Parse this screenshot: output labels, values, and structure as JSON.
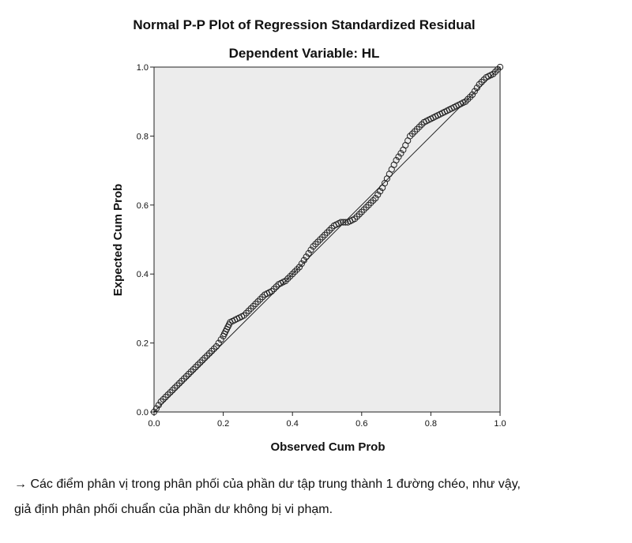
{
  "chart_data": {
    "type": "scatter",
    "title": "Normal P-P Plot of Regression Standardized Residual",
    "subtitle": "Dependent Variable: HL",
    "xlabel": "Observed Cum Prob",
    "ylabel": "Expected Cum Prob",
    "xlim": [
      0,
      1
    ],
    "ylim": [
      0,
      1
    ],
    "xticks": [
      "0.0",
      "0.2",
      "0.4",
      "0.6",
      "0.8",
      "1.0"
    ],
    "yticks": [
      "0.0",
      "0.2",
      "0.4",
      "0.6",
      "0.8",
      "1.0"
    ],
    "reference_line": [
      [
        0,
        0
      ],
      [
        1,
        1
      ]
    ],
    "plot_background": "#ececec",
    "marker": "hollow-circle",
    "points_xy": [
      [
        0.0,
        0.0
      ],
      [
        0.02,
        0.03
      ],
      [
        0.04,
        0.05
      ],
      [
        0.06,
        0.07
      ],
      [
        0.08,
        0.09
      ],
      [
        0.1,
        0.11
      ],
      [
        0.12,
        0.13
      ],
      [
        0.14,
        0.15
      ],
      [
        0.16,
        0.17
      ],
      [
        0.18,
        0.19
      ],
      [
        0.2,
        0.22
      ],
      [
        0.21,
        0.24
      ],
      [
        0.22,
        0.26
      ],
      [
        0.24,
        0.27
      ],
      [
        0.26,
        0.28
      ],
      [
        0.28,
        0.3
      ],
      [
        0.3,
        0.32
      ],
      [
        0.32,
        0.34
      ],
      [
        0.34,
        0.35
      ],
      [
        0.36,
        0.37
      ],
      [
        0.38,
        0.38
      ],
      [
        0.4,
        0.4
      ],
      [
        0.42,
        0.42
      ],
      [
        0.44,
        0.45
      ],
      [
        0.46,
        0.48
      ],
      [
        0.48,
        0.5
      ],
      [
        0.5,
        0.52
      ],
      [
        0.52,
        0.54
      ],
      [
        0.54,
        0.55
      ],
      [
        0.56,
        0.55
      ],
      [
        0.58,
        0.56
      ],
      [
        0.6,
        0.58
      ],
      [
        0.62,
        0.6
      ],
      [
        0.64,
        0.62
      ],
      [
        0.66,
        0.65
      ],
      [
        0.68,
        0.69
      ],
      [
        0.7,
        0.73
      ],
      [
        0.72,
        0.76
      ],
      [
        0.74,
        0.8
      ],
      [
        0.76,
        0.82
      ],
      [
        0.78,
        0.84
      ],
      [
        0.8,
        0.85
      ],
      [
        0.82,
        0.86
      ],
      [
        0.84,
        0.87
      ],
      [
        0.86,
        0.88
      ],
      [
        0.88,
        0.89
      ],
      [
        0.9,
        0.9
      ],
      [
        0.92,
        0.92
      ],
      [
        0.94,
        0.95
      ],
      [
        0.96,
        0.97
      ],
      [
        0.98,
        0.98
      ],
      [
        1.0,
        1.0
      ]
    ]
  },
  "caption": {
    "line1": "→ Các điểm phân vị trong phân phối của phần dư tập trung thành 1 đường chéo, như vậy,",
    "line2": "giả định phân phối chuẩn của phần dư không bị vi phạm."
  }
}
